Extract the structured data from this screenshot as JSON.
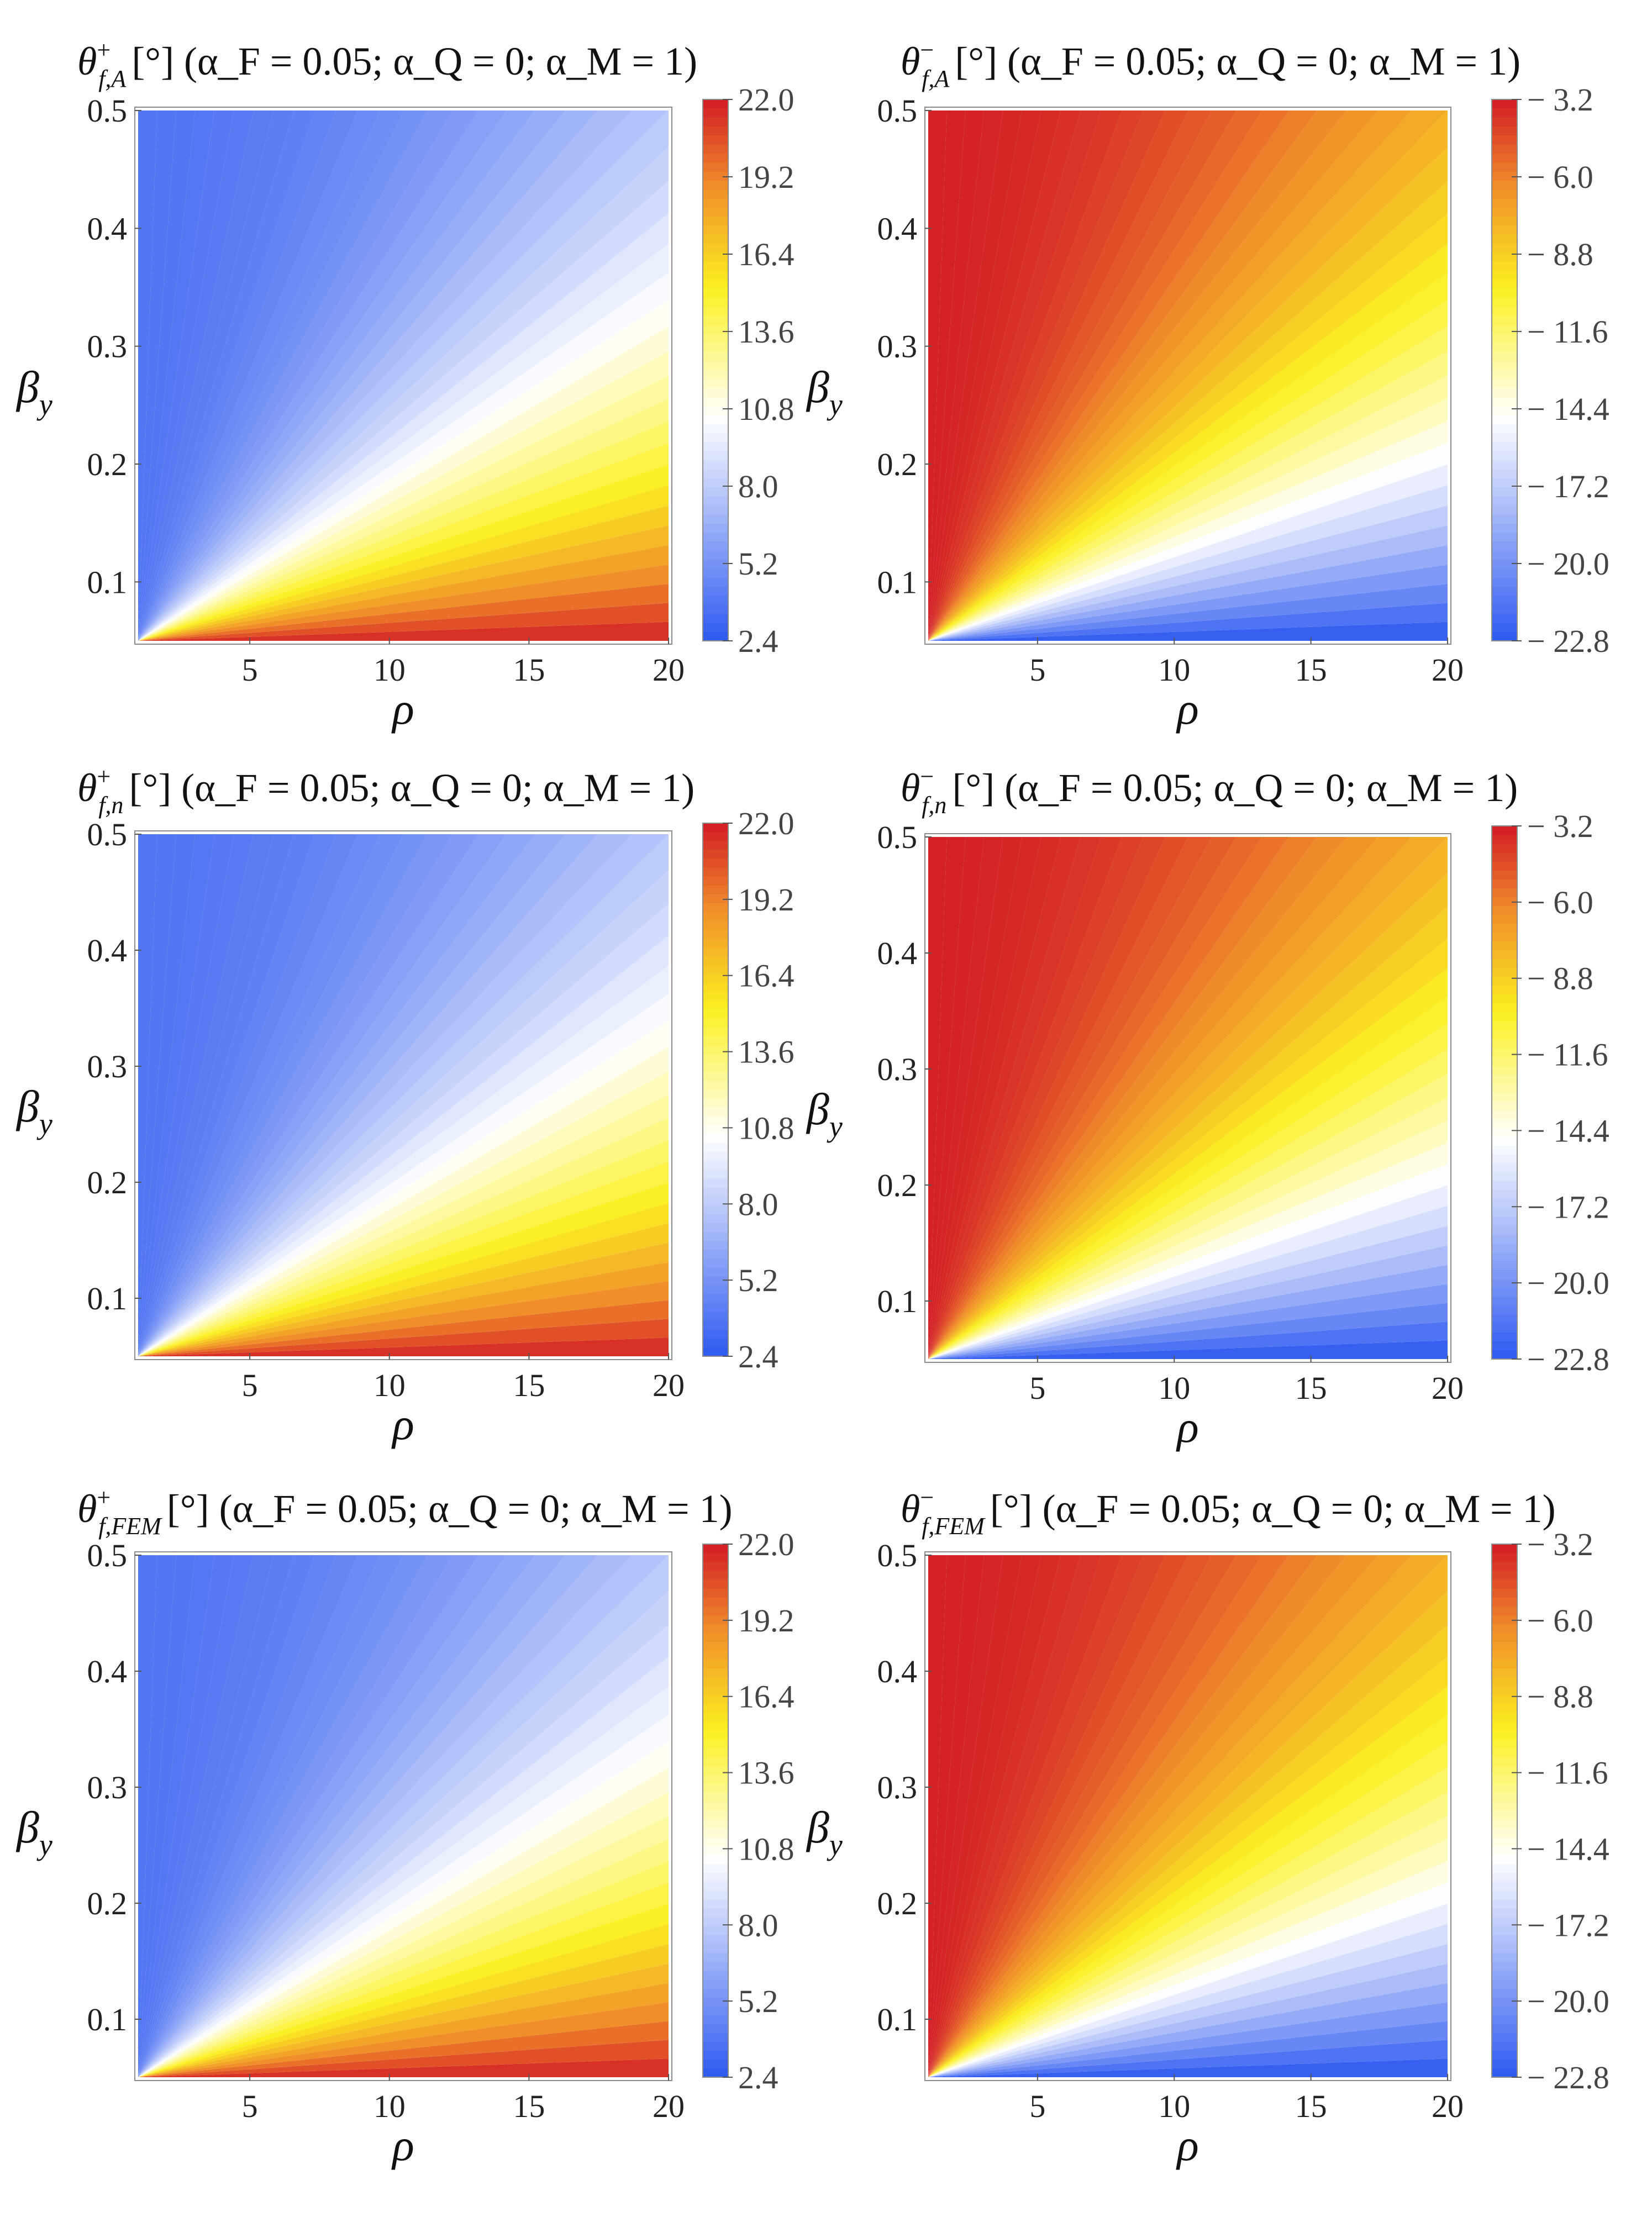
{
  "colors": {
    "blue": "#2a56f0",
    "white": "#ffffff",
    "yellow": "#fbf020",
    "orange": "#f08c2a",
    "red": "#d42126",
    "frame": "#8c8c8c"
  },
  "chart_data": [
    {
      "type": "heatmap",
      "title_symbol": "θ",
      "title_sub": "f,A",
      "title_sup": "+",
      "title_params": "[°] (α_F = 0.05; α_Q = 0; α_M = 1)",
      "xlabel": "ρ",
      "ylabel_symbol": "β",
      "ylabel_sub": "y",
      "xlim": [
        1,
        20
      ],
      "ylim": [
        0.05,
        0.5
      ],
      "xticks": [
        "5",
        "10",
        "15",
        "20"
      ],
      "yticks": [
        "0.1",
        "0.2",
        "0.3",
        "0.4",
        "0.5"
      ],
      "colorbar": {
        "ticks": [
          "22.0",
          "19.2",
          "16.4",
          "13.6",
          "10.8",
          "8.0",
          "5.2",
          "2.4"
        ],
        "min": 2.4,
        "max": 22.0,
        "side": "right-inset"
      }
    },
    {
      "type": "heatmap",
      "title_symbol": "θ",
      "title_sub": "f,A",
      "title_sup": "−",
      "title_params": "[°] (α_F = 0.05; α_Q = 0; α_M = 1)",
      "xlabel": "ρ",
      "ylabel_symbol": "β",
      "ylabel_sub": "y",
      "xlim": [
        1,
        20
      ],
      "ylim": [
        0.05,
        0.5
      ],
      "xticks": [
        "5",
        "10",
        "15",
        "20"
      ],
      "yticks": [
        "0.1",
        "0.2",
        "0.3",
        "0.4",
        "0.5"
      ],
      "colorbar": {
        "ticks": [
          "− 3.2",
          "− 6.0",
          "− 8.8",
          "− 11.6",
          "− 14.4",
          "− 17.2",
          "− 20.0",
          "− 22.8"
        ],
        "min": -22.8,
        "max": -3.2,
        "side": "right-outset"
      }
    },
    {
      "type": "heatmap",
      "title_symbol": "θ",
      "title_sub": "f,n",
      "title_sup": "+",
      "title_params": "[°] (α_F = 0.05; α_Q = 0; α_M = 1)",
      "xlabel": "ρ",
      "ylabel_symbol": "β",
      "ylabel_sub": "y",
      "xlim": [
        1,
        20
      ],
      "ylim": [
        0.05,
        0.5
      ],
      "xticks": [
        "5",
        "10",
        "15",
        "20"
      ],
      "yticks": [
        "0.1",
        "0.2",
        "0.3",
        "0.4",
        "0.5"
      ],
      "colorbar": {
        "ticks": [
          "22.0",
          "19.2",
          "16.4",
          "13.6",
          "10.8",
          "8.0",
          "5.2",
          "2.4"
        ],
        "min": 2.4,
        "max": 22.0,
        "side": "right-inset"
      }
    },
    {
      "type": "heatmap",
      "title_symbol": "θ",
      "title_sub": "f,n",
      "title_sup": "−",
      "title_params": "[°] (α_F = 0.05; α_Q = 0; α_M = 1)",
      "xlabel": "ρ",
      "ylabel_symbol": "β",
      "ylabel_sub": "y",
      "xlim": [
        1,
        20
      ],
      "ylim": [
        0.05,
        0.5
      ],
      "xticks": [
        "5",
        "10",
        "15",
        "20"
      ],
      "yticks": [
        "0.1",
        "0.2",
        "0.3",
        "0.4",
        "0.5"
      ],
      "colorbar": {
        "ticks": [
          "− 3.2",
          "− 6.0",
          "− 8.8",
          "− 11.6",
          "− 14.4",
          "− 17.2",
          "− 20.0",
          "− 22.8"
        ],
        "min": -22.8,
        "max": -3.2,
        "side": "right-outset"
      }
    },
    {
      "type": "heatmap",
      "title_symbol": "θ",
      "title_sub": "f,FEM",
      "title_sup": "+",
      "title_params": "[°] (α_F = 0.05; α_Q = 0; α_M = 1)",
      "xlabel": "ρ",
      "ylabel_symbol": "β",
      "ylabel_sub": "y",
      "xlim": [
        1,
        20
      ],
      "ylim": [
        0.05,
        0.5
      ],
      "xticks": [
        "5",
        "10",
        "15",
        "20"
      ],
      "yticks": [
        "0.1",
        "0.2",
        "0.3",
        "0.4",
        "0.5"
      ],
      "colorbar": {
        "ticks": [
          "22.0",
          "19.2",
          "16.4",
          "13.6",
          "10.8",
          "8.0",
          "5.2",
          "2.4"
        ],
        "min": 2.4,
        "max": 22.0,
        "side": "right-inset"
      }
    },
    {
      "type": "heatmap",
      "title_symbol": "θ",
      "title_sub": "f,FEM",
      "title_sup": "−",
      "title_params": "[°] (α_F = 0.05; α_Q = 0; α_M = 1)",
      "xlabel": "ρ",
      "ylabel_symbol": "β",
      "ylabel_sub": "y",
      "xlim": [
        1,
        20
      ],
      "ylim": [
        0.05,
        0.5
      ],
      "xticks": [
        "5",
        "10",
        "15",
        "20"
      ],
      "yticks": [
        "0.1",
        "0.2",
        "0.3",
        "0.4",
        "0.5"
      ],
      "colorbar": {
        "ticks": [
          "− 3.2",
          "− 6.0",
          "− 8.8",
          "− 11.6",
          "− 14.4",
          "− 17.2",
          "− 20.0",
          "− 22.8"
        ],
        "min": -22.8,
        "max": -3.2,
        "side": "right-outset"
      }
    }
  ]
}
